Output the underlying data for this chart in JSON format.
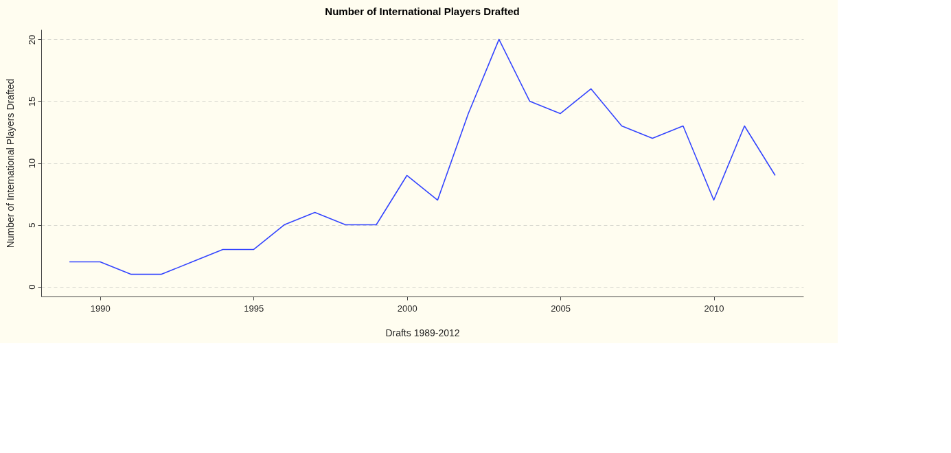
{
  "chart_data": {
    "type": "line",
    "title": "Number of International Players Drafted",
    "xlabel": "Drafts 1989-2012",
    "ylabel": "Number of International Players Drafted",
    "x": [
      1989,
      1990,
      1991,
      1992,
      1993,
      1994,
      1995,
      1996,
      1997,
      1998,
      1999,
      2000,
      2001,
      2002,
      2003,
      2004,
      2005,
      2006,
      2007,
      2008,
      2009,
      2010,
      2011,
      2012
    ],
    "series": [
      {
        "color": "#3344ff",
        "values": [
          2,
          2,
          1,
          1,
          2,
          3,
          3,
          5,
          6,
          5,
          5,
          9,
          7,
          14,
          20,
          15,
          14,
          16,
          13,
          12,
          13,
          7,
          13,
          9
        ]
      }
    ],
    "xlim": [
      1988.08,
      2012.92
    ],
    "xticks": [
      1990,
      1995,
      2000,
      2005,
      2010
    ],
    "ylim": [
      -0.8,
      20.8
    ],
    "yticks": [
      0,
      5,
      10,
      15,
      20
    ],
    "grid": "y",
    "marker": "none",
    "line_style": "solid"
  }
}
